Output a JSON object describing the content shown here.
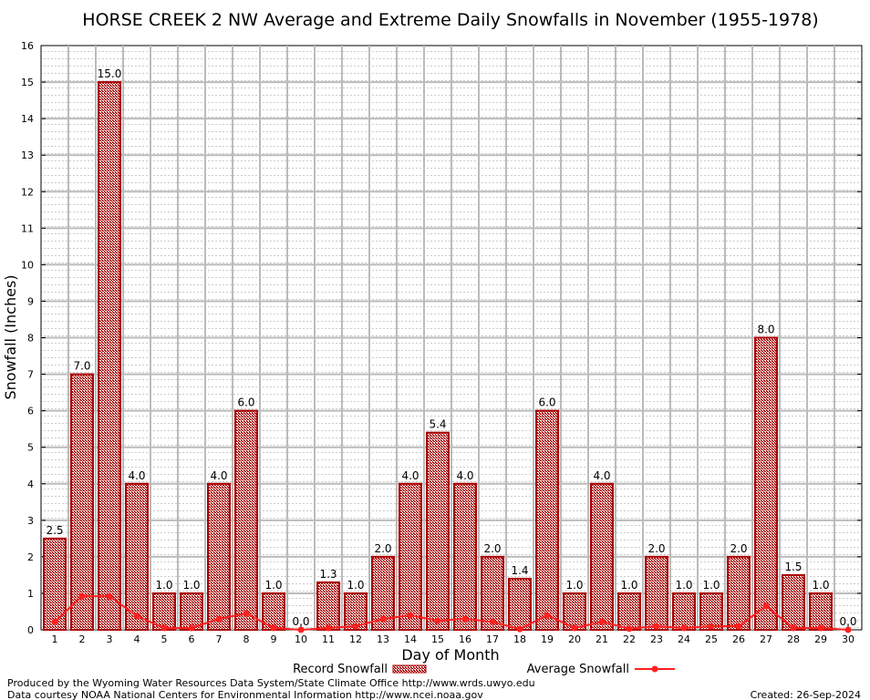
{
  "chart_data": {
    "type": "bar",
    "title": "HORSE CREEK 2 NW Average and Extreme Daily Snowfalls in November (1955-1978)",
    "xlabel": "Day of Month",
    "ylabel": "Snowfall (Inches)",
    "ylim": [
      0,
      16
    ],
    "yticks": [
      0,
      1,
      2,
      3,
      4,
      5,
      6,
      7,
      8,
      9,
      10,
      11,
      12,
      13,
      14,
      15,
      16
    ],
    "categories": [
      "1",
      "2",
      "3",
      "4",
      "5",
      "6",
      "7",
      "8",
      "9",
      "10",
      "11",
      "12",
      "13",
      "14",
      "15",
      "16",
      "17",
      "18",
      "19",
      "20",
      "21",
      "22",
      "23",
      "24",
      "25",
      "26",
      "27",
      "28",
      "29",
      "30"
    ],
    "series": [
      {
        "name": "Record Snowfall",
        "type": "bar",
        "color": "#aa0000",
        "values": [
          2.5,
          7.0,
          15.0,
          4.0,
          1.0,
          1.0,
          4.0,
          6.0,
          1.0,
          0.0,
          1.3,
          1.0,
          2.0,
          4.0,
          5.4,
          4.0,
          2.0,
          1.4,
          6.0,
          1.0,
          4.0,
          1.0,
          2.0,
          1.0,
          1.0,
          2.0,
          8.0,
          1.5,
          1.0,
          0.0
        ]
      },
      {
        "name": "Average Snowfall",
        "type": "line",
        "color": "#ff2020",
        "values": [
          0.22,
          0.92,
          0.92,
          0.38,
          0.05,
          0.05,
          0.3,
          0.45,
          0.05,
          0.0,
          0.05,
          0.1,
          0.3,
          0.4,
          0.25,
          0.3,
          0.22,
          0.02,
          0.4,
          0.05,
          0.22,
          0.03,
          0.1,
          0.05,
          0.1,
          0.1,
          0.65,
          0.05,
          0.05,
          0.0
        ]
      }
    ],
    "grid": true,
    "legend": "bottom-center"
  },
  "footer": {
    "produced": "Produced by the Wyoming Water Resources Data System/State Climate Office http://www.wrds.uwyo.edu",
    "courtesy": "Data courtesy NOAA National Centers for Environmental Information http://www.ncei.noaa.gov",
    "created": "Created:  26-Sep-2024"
  }
}
